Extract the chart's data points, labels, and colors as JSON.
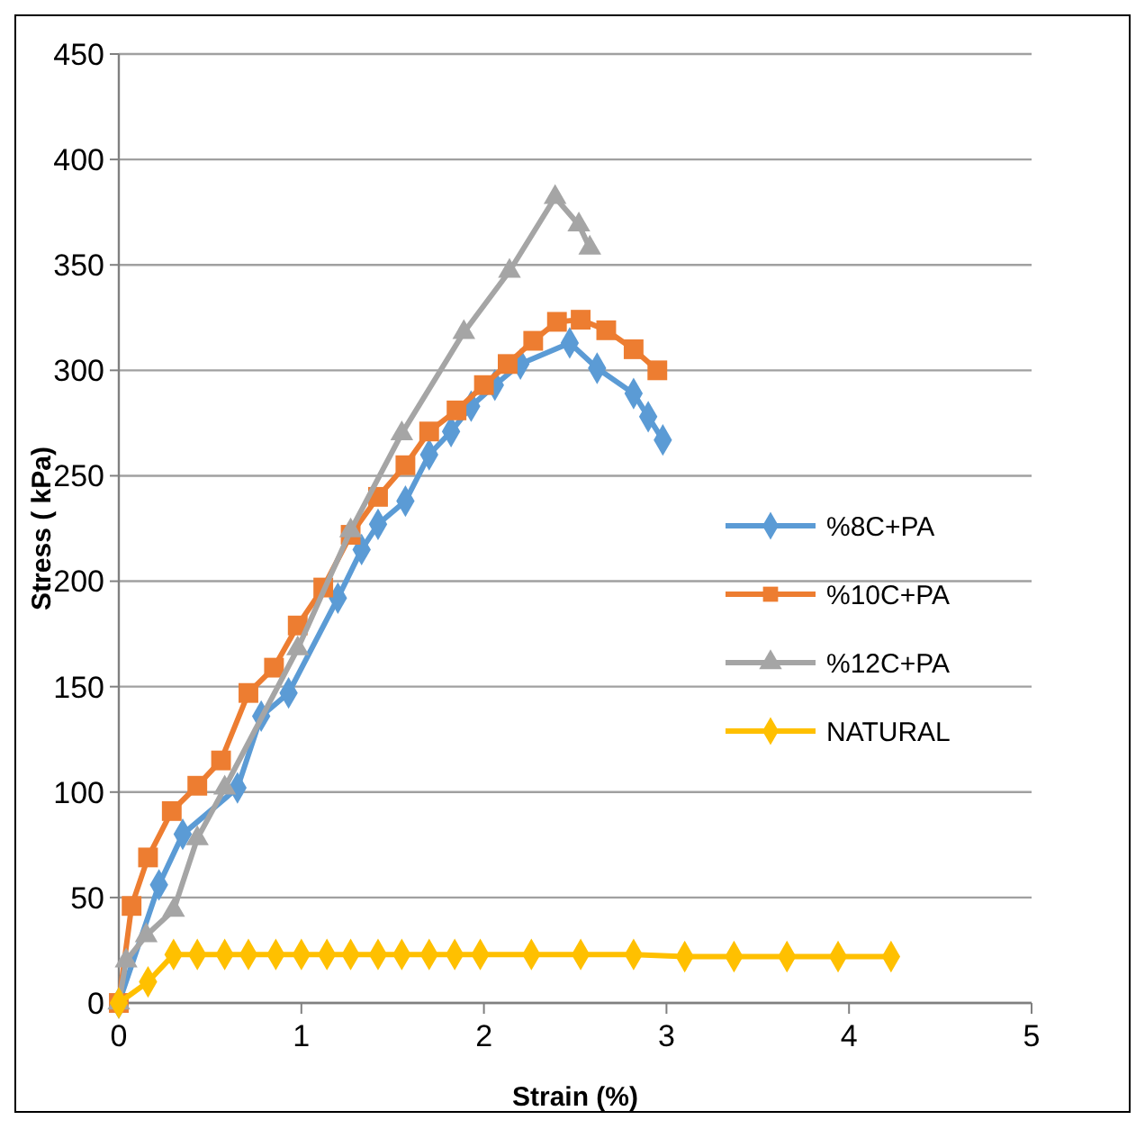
{
  "chart_data": {
    "type": "line",
    "xlabel": "Strain (%)",
    "ylabel": "Stress ( kPa)",
    "xlim": [
      0,
      5
    ],
    "xticks": [
      0,
      1,
      2,
      3,
      4,
      5
    ],
    "ylim": [
      0,
      450
    ],
    "yticks": [
      0,
      50,
      100,
      150,
      200,
      250,
      300,
      350,
      400,
      450
    ],
    "grid": "y",
    "legend": "right",
    "series": [
      {
        "name": "%8C+PA",
        "color": "#5b9bd5",
        "marker": "diamond",
        "x": [
          0,
          0.22,
          0.35,
          0.65,
          0.78,
          0.93,
          1.2,
          1.33,
          1.42,
          1.57,
          1.7,
          1.82,
          1.93,
          2.06,
          2.2,
          2.47,
          2.62,
          2.82,
          2.9,
          2.98
        ],
        "values": [
          0,
          56,
          80,
          102,
          136,
          147,
          192,
          215,
          227,
          238,
          260,
          271,
          283,
          293,
          303,
          313,
          301,
          289,
          278,
          267
        ]
      },
      {
        "name": "%10C+PA",
        "color": "#ed7d31",
        "marker": "square",
        "x": [
          0,
          0.07,
          0.16,
          0.29,
          0.43,
          0.56,
          0.71,
          0.85,
          0.98,
          1.12,
          1.27,
          1.42,
          1.57,
          1.7,
          1.85,
          2,
          2.13,
          2.27,
          2.4,
          2.53,
          2.67,
          2.82,
          2.95
        ],
        "values": [
          0,
          46,
          69,
          91,
          103,
          115,
          147,
          159,
          179,
          197,
          222,
          240,
          255,
          271,
          281,
          293,
          303,
          314,
          323,
          324,
          319,
          310,
          300
        ]
      },
      {
        "name": "%12C+PA",
        "color": "#a5a5a5",
        "marker": "triangle",
        "x": [
          0,
          0.04,
          0.15,
          0.3,
          0.43,
          0.58,
          0.98,
          1.27,
          1.55,
          1.89,
          2.14,
          2.39,
          2.52,
          2.58
        ],
        "values": [
          0,
          20,
          32,
          44,
          78,
          102,
          168,
          224,
          270,
          318,
          347,
          382,
          369,
          358
        ]
      },
      {
        "name": "NATURAL",
        "color": "#ffc000",
        "marker": "diamond",
        "x": [
          0,
          0.16,
          0.3,
          0.43,
          0.58,
          0.71,
          0.86,
          1,
          1.14,
          1.27,
          1.42,
          1.55,
          1.7,
          1.84,
          1.98,
          2.26,
          2.53,
          2.82,
          3.1,
          3.37,
          3.66,
          3.94,
          4.23
        ],
        "values": [
          0,
          10,
          23,
          23,
          23,
          23,
          23,
          23,
          23,
          23,
          23,
          23,
          23,
          23,
          23,
          23,
          23,
          23,
          22,
          22,
          22,
          22,
          22
        ]
      }
    ]
  }
}
